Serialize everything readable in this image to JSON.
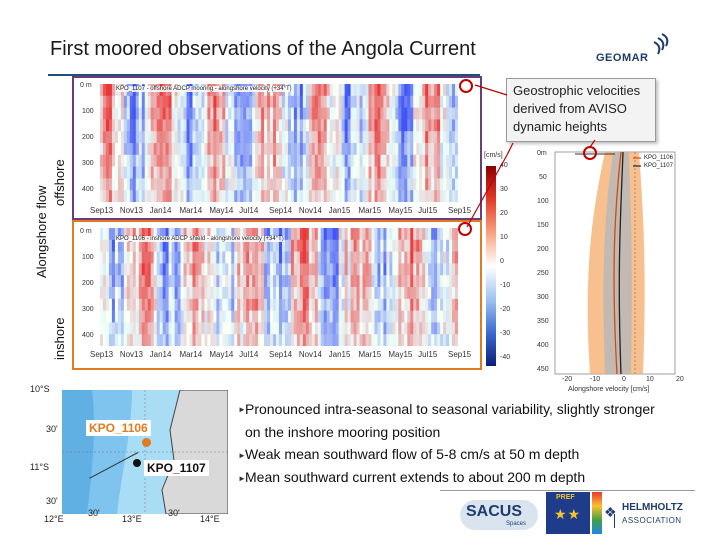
{
  "title": "First moored observations of the Angola Current",
  "logo": {
    "text": "GEOMAR",
    "icon": "geomar-swirl-icon"
  },
  "side_labels": {
    "main": "Alongshore flow",
    "offshore": "offshore",
    "inshore": "inshore"
  },
  "panels": {
    "offshore": {
      "header": "KPO_1107 - offshore ADCP mooring - alongshore velocity (+34°T)",
      "depth_ticks": [
        "0 m",
        "100",
        "200",
        "300",
        "400"
      ],
      "time_ticks": [
        "Sep13",
        "Nov13",
        "Jan14",
        "Mar14",
        "May14",
        "Jul14",
        "Sep14",
        "Nov14",
        "Jan15",
        "Mar15",
        "May15",
        "Jul15",
        "Sep15"
      ]
    },
    "inshore": {
      "header": "KPO_1106 - inshore ADCP shield - alongshore velocity (+34°T)",
      "depth_ticks": [
        "0 m",
        "100",
        "200",
        "300",
        "400"
      ],
      "time_ticks": [
        "Sep13",
        "Nov13",
        "Jan14",
        "Mar14",
        "May14",
        "Jul14",
        "Sep14",
        "Nov14",
        "Jan15",
        "Mar15",
        "May15",
        "Jul15",
        "Sep15"
      ]
    }
  },
  "colorbar": {
    "unit": "[cm/s]",
    "ticks": [
      "40",
      "30",
      "20",
      "10",
      "0",
      "-10",
      "-20",
      "-30",
      "-40"
    ]
  },
  "callout": "Geostrophic velocities derived from AVISO dynamic heights",
  "profile": {
    "depth_ticks": [
      "0m",
      "50",
      "100",
      "150",
      "200",
      "250",
      "300",
      "350",
      "400",
      "450"
    ],
    "xticks": [
      "-20",
      "-10",
      "0",
      "10",
      "20"
    ],
    "xlabel": "Alongshore velocity [cm/s]",
    "legend": [
      "KPO_1106",
      "KPO_1107"
    ]
  },
  "map": {
    "lat_labels": [
      "10°S",
      "30'",
      "11°S",
      "30'"
    ],
    "lon_labels": [
      "12°E",
      "30'",
      "13°E",
      "30'",
      "14°E"
    ],
    "stations": [
      "KPO_1106",
      "KPO_1107"
    ]
  },
  "bullets": [
    "Pronounced intra-seasonal to seasonal variability, slightly stronger on the inshore mooring position",
    "Weak mean southward flow of 5-8 cm/s at 50 m depth",
    "Mean southward current extends to about 200 m depth"
  ],
  "footer_logos": {
    "sacus": "SACUS",
    "sacus_sub": "Spaces",
    "helmholtz": "HELMHOLTZ",
    "association": "ASSOCIATION",
    "pref": "PREF"
  },
  "colors": {
    "rule": "#1f4e79",
    "offshore_border": "#6a3d7a",
    "inshore_border": "#e07b20",
    "ring": "#c00000",
    "shelf": "#a9dcf5",
    "land": "#d9d9d9"
  }
}
